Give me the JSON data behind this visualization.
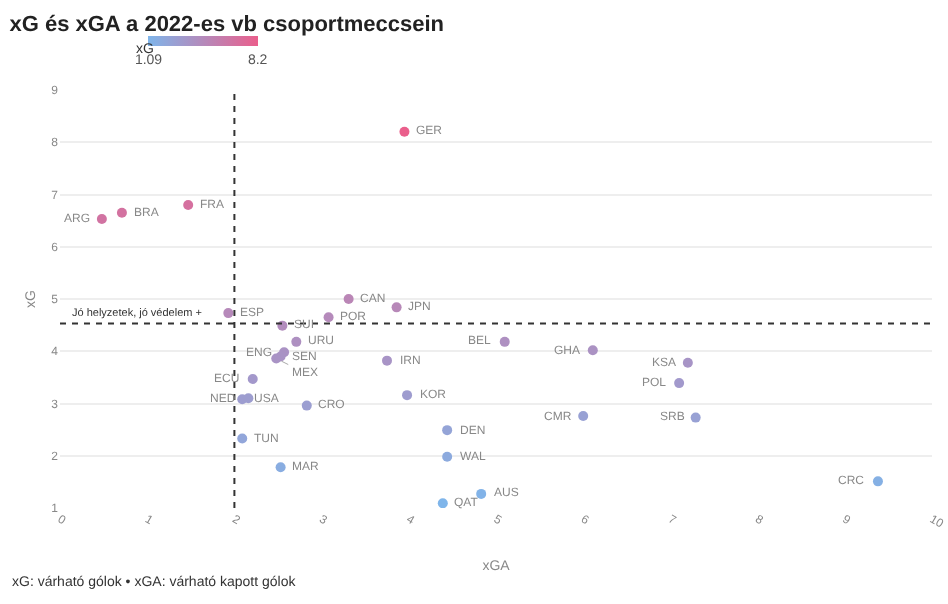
{
  "chart_data": {
    "type": "scatter",
    "title": "xG és xGA a 2022-es vb csoportmeccsein",
    "xlabel": "xGA",
    "ylabel": "xG",
    "clabel": "xG",
    "clim": [
      1.09,
      8.2
    ],
    "cticks": [
      1.09,
      8.2
    ],
    "x": [
      3.95,
      1.47,
      0.71,
      0.48,
      1.93,
      3.31,
      3.86,
      3.08,
      2.55,
      2.71,
      2.57,
      2.53,
      2.48,
      3.75,
      5.1,
      6.11,
      7.2,
      7.1,
      7.29,
      6.0,
      3.98,
      2.21,
      2.09,
      2.16,
      2.83,
      2.09,
      4.44,
      4.44,
      2.53,
      4.83,
      4.39,
      9.38
    ],
    "values": [
      8.2,
      6.8,
      6.65,
      6.53,
      4.73,
      5.0,
      4.84,
      4.65,
      4.49,
      4.18,
      3.98,
      3.9,
      3.86,
      3.82,
      4.18,
      4.02,
      3.78,
      3.39,
      2.73,
      2.76,
      3.16,
      3.47,
      3.08,
      3.1,
      2.96,
      2.33,
      2.49,
      1.98,
      1.78,
      1.27,
      1.09,
      1.51
    ],
    "cvalues": [
      8.2,
      6.8,
      6.65,
      6.53,
      4.73,
      5.0,
      4.84,
      4.65,
      4.49,
      4.18,
      3.98,
      3.9,
      3.86,
      3.82,
      4.18,
      4.02,
      3.78,
      3.39,
      2.73,
      2.76,
      3.16,
      3.47,
      3.08,
      3.1,
      2.96,
      2.33,
      2.49,
      1.98,
      1.78,
      1.27,
      1.09,
      1.51
    ],
    "xlim": [
      0,
      10
    ],
    "xticks": [
      0,
      1,
      2,
      3,
      4,
      5,
      6,
      7,
      8,
      9,
      10
    ],
    "ylim": [
      1,
      9
    ],
    "yticks": [
      1,
      2,
      3,
      4,
      5,
      6,
      7,
      8,
      9
    ],
    "grid": "y",
    "marker": "circle",
    "ref_lines": [
      {
        "axis": "x",
        "value": 2,
        "line_style": "dotted",
        "color": "#333333"
      },
      {
        "axis": "y",
        "value": 4.53,
        "label": "Jó helyzetek, jó védelem +",
        "line_style": "dotted",
        "color": "#333333"
      }
    ],
    "annotations": [
      {
        "text": "GER",
        "x": 3.95,
        "y": 8.2
      },
      {
        "text": "FRA",
        "x": 1.47,
        "y": 6.8
      },
      {
        "text": "BRA",
        "x": 0.71,
        "y": 6.65
      },
      {
        "text": "ARG",
        "x": 0.48,
        "y": 6.53
      },
      {
        "text": "ESP",
        "x": 1.93,
        "y": 4.73
      },
      {
        "text": "CAN",
        "x": 3.31,
        "y": 5.0
      },
      {
        "text": "JPN",
        "x": 3.86,
        "y": 4.84
      },
      {
        "text": "POR",
        "x": 3.08,
        "y": 4.65
      },
      {
        "text": "SUI",
        "x": 2.55,
        "y": 4.49
      },
      {
        "text": "URU",
        "x": 2.71,
        "y": 4.18
      },
      {
        "text": "ENG",
        "x": 2.57,
        "y": 3.98
      },
      {
        "text": "SEN",
        "x": 2.53,
        "y": 3.9
      },
      {
        "text": "MEX",
        "x": 2.48,
        "y": 3.86
      },
      {
        "text": "IRN",
        "x": 3.75,
        "y": 3.82
      },
      {
        "text": "BEL",
        "x": 5.1,
        "y": 4.18
      },
      {
        "text": "GHA",
        "x": 6.11,
        "y": 4.02
      },
      {
        "text": "KSA",
        "x": 7.2,
        "y": 3.78
      },
      {
        "text": "POL",
        "x": 7.1,
        "y": 3.39
      },
      {
        "text": "SRB",
        "x": 7.29,
        "y": 2.73
      },
      {
        "text": "CMR",
        "x": 6.0,
        "y": 2.76
      },
      {
        "text": "KOR",
        "x": 3.98,
        "y": 3.16
      },
      {
        "text": "ECU",
        "x": 2.21,
        "y": 3.47
      },
      {
        "text": "USA",
        "x": 2.09,
        "y": 3.08
      },
      {
        "text": "NED",
        "x": 2.16,
        "y": 3.1
      },
      {
        "text": "CRO",
        "x": 2.83,
        "y": 2.96
      },
      {
        "text": "TUN",
        "x": 2.09,
        "y": 2.33
      },
      {
        "text": "DEN",
        "x": 4.44,
        "y": 2.49
      },
      {
        "text": "WAL",
        "x": 4.44,
        "y": 1.98
      },
      {
        "text": "MAR",
        "x": 2.53,
        "y": 1.78
      },
      {
        "text": "AUS",
        "x": 4.83,
        "y": 1.27
      },
      {
        "text": "QAT",
        "x": 4.39,
        "y": 1.09
      },
      {
        "text": "CRC",
        "x": 9.38,
        "y": 1.51
      },
      "xG: várható gólok • xGA: várható kapott gólok"
    ]
  }
}
